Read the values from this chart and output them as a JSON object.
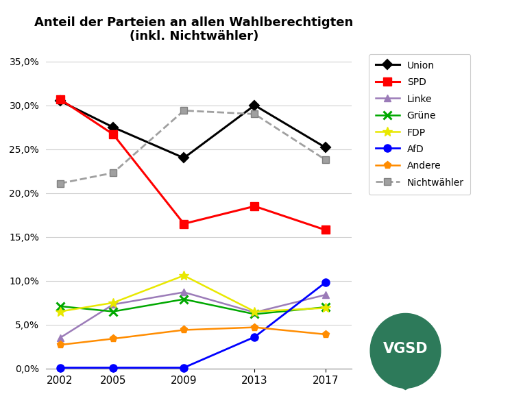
{
  "title": "Anteil der Parteien an allen Wahlberechtigten\n(inkl. Nichtwähler)",
  "years": [
    2002,
    2005,
    2009,
    2013,
    2017
  ],
  "series": {
    "Union": {
      "values": [
        30.5,
        27.5,
        24.0,
        30.0,
        25.2
      ],
      "color": "#000000",
      "lw": 2.2,
      "ls": "-",
      "marker": "D",
      "ms": 7,
      "mew": 1.5
    },
    "SPD": {
      "values": [
        30.7,
        26.7,
        16.5,
        18.5,
        15.8
      ],
      "color": "#ff0000",
      "lw": 2.2,
      "ls": "-",
      "marker": "s",
      "ms": 8,
      "mew": 1.0
    },
    "Linke": {
      "values": [
        3.5,
        7.3,
        8.7,
        6.4,
        8.4
      ],
      "color": "#9b7bb8",
      "lw": 1.8,
      "ls": "-",
      "marker": "^",
      "ms": 7,
      "mew": 1.0
    },
    "Grüne": {
      "values": [
        7.1,
        6.5,
        7.9,
        6.2,
        7.0
      ],
      "color": "#00a800",
      "lw": 1.8,
      "ls": "-",
      "marker": "x",
      "ms": 9,
      "mew": 2.2
    },
    "FDP": {
      "values": [
        6.5,
        7.5,
        10.6,
        6.5,
        6.9
      ],
      "color": "#e8e800",
      "lw": 1.8,
      "ls": "-",
      "marker": "*",
      "ms": 10,
      "mew": 1.0
    },
    "AfD": {
      "values": [
        0.1,
        0.1,
        0.1,
        3.6,
        9.8
      ],
      "color": "#0000ff",
      "lw": 2.0,
      "ls": "-",
      "marker": "o",
      "ms": 8,
      "mew": 1.0
    },
    "Andere": {
      "values": [
        2.7,
        3.4,
        4.4,
        4.7,
        3.9
      ],
      "color": "#ff8c00",
      "lw": 1.8,
      "ls": "-",
      "marker": "p",
      "ms": 8,
      "mew": 1.0
    },
    "Nichtwähler": {
      "values": [
        21.1,
        22.3,
        29.4,
        29.0,
        23.8
      ],
      "color": "#a0a0a0",
      "lw": 2.0,
      "ls": "--",
      "marker": "s",
      "ms": 7,
      "mew": 1.0
    }
  },
  "legend_order": [
    "Union",
    "SPD",
    "Linke",
    "Grüne",
    "FDP",
    "AfD",
    "Andere",
    "Nichtwähler"
  ],
  "ylim": [
    0.0,
    0.36
  ],
  "yticks": [
    0.0,
    0.05,
    0.1,
    0.15,
    0.2,
    0.25,
    0.3,
    0.35
  ],
  "xlim": [
    2001.2,
    2018.5
  ],
  "bg_color": "#ffffff",
  "grid_color": "#d0d0d0",
  "vgsd_color": "#2d7a5a",
  "vgsd_text_color": "#ffffff"
}
